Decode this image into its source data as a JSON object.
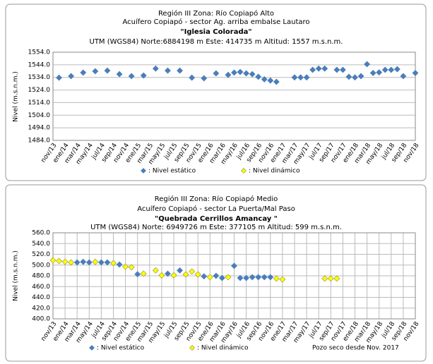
{
  "chart_data": [
    {
      "type": "scatter",
      "title": "Región III Zona: Río Copiapó Alto",
      "subtitle": "Acuífero Copiapó - sector Ag. arriba embalse Lautaro",
      "station": "\"Iglesia Colorada\"",
      "coordinates": "UTM (WGS84) Norte:6884198 m Este: 414735 m Altitud: 1557 m.s.n.m.",
      "y_label": "Nivel (m.s.n.m.)",
      "categories": [
        "nov/13",
        null,
        "ene/14",
        null,
        "mar/14",
        null,
        "may/14",
        null,
        "jul/14",
        null,
        "sep/14",
        null,
        "nov/14",
        null,
        "ene/15",
        null,
        "mar/15",
        null,
        "may/15",
        null,
        "jul/15",
        null,
        "sep/15",
        null,
        "nov/15",
        null,
        "ene/16",
        null,
        "mar/16",
        null,
        "may/16",
        null,
        "jul/16",
        null,
        "sep/16",
        null,
        "nov/16",
        null,
        "ene/17",
        null,
        "mar/17",
        null,
        "may/17",
        null,
        "jul/17",
        null,
        "sep/17",
        null,
        "nov/17",
        null,
        "ene/18",
        null,
        "mar/18",
        null,
        "may/18",
        null,
        "jul/18",
        null,
        "sep/18",
        null,
        "nov/18"
      ],
      "series": [
        {
          "name": ": Nivel estático",
          "color": "#4a7ebb",
          "values": [
            null,
            1533.8,
            null,
            1535,
            null,
            1537.8,
            null,
            1538.9,
            null,
            1539.4,
            null,
            1536.6,
            null,
            1535,
            null,
            1535.5,
            null,
            1541,
            null,
            1539.4,
            null,
            1539.4,
            null,
            1533.8,
            null,
            1533.3,
            null,
            1537.2,
            null,
            1536,
            1537.8,
            1538.3,
            1537.2,
            1536.6,
            1534.5,
            1532.5,
            1531.5,
            1530.5,
            null,
            null,
            1534,
            1534,
            1534,
            1540,
            1541,
            1541,
            null,
            1540,
            1540,
            1534.5,
            1534,
            1535,
            1544.5,
            1537.5,
            1538,
            1540,
            1540,
            1540.5,
            1535,
            null,
            1537.5
          ]
        },
        {
          "name": ": Nivel dinámico",
          "color": "#ffff00",
          "values": [
            null,
            null,
            null,
            null,
            null,
            null,
            null,
            null,
            null,
            null,
            null,
            null,
            null,
            null,
            null,
            null,
            null,
            null,
            null,
            null,
            null,
            null,
            null,
            null,
            null,
            null,
            null,
            null,
            null,
            null,
            null,
            null,
            null,
            null,
            null,
            null,
            null,
            null,
            null,
            null,
            null,
            null,
            null,
            null,
            null,
            null,
            null,
            null,
            null,
            null,
            null,
            null,
            null,
            null,
            null,
            null,
            null,
            null,
            null,
            null,
            null
          ]
        }
      ],
      "ylim": [
        1484,
        1554
      ],
      "yticks": [
        {
          "value": 1484,
          "label": "1484.0"
        },
        {
          "value": 1494,
          "label": "1494.0"
        },
        {
          "value": 1504,
          "label": "1504.0"
        },
        {
          "value": 1514,
          "label": "1514.0"
        },
        {
          "value": 1524,
          "label": "1524.0"
        },
        {
          "value": 1534,
          "label": "1534.0"
        },
        {
          "value": 1544,
          "label": "1544.0"
        },
        {
          "value": 1554,
          "label": "1554.0"
        }
      ],
      "grid": true,
      "xgrid": false
    },
    {
      "type": "scatter",
      "title": "Región III  Zona: Río Copiapó Medio",
      "subtitle": "Acuífero Copiapó - sector La Puerta/Mal  Paso",
      "station": "\"Quebrada Cerrillos Amancay \"",
      "coordinates": "UTM (WGS84) Norte: 6949726 m   Este: 377105 m Altitud: 599 m.s.n.m.",
      "y_label": "Nivel (m.s.n.m.)",
      "note": "Pozo seco desde Nov. 2017",
      "categories": [
        "nov/13",
        null,
        "ene/14",
        null,
        "mar/14",
        null,
        "may/14",
        null,
        "jul/14",
        null,
        "sep/14",
        null,
        "nov/14",
        null,
        "ene/15",
        null,
        "mar/15",
        null,
        "may/15",
        null,
        "jul/15",
        null,
        "sep/15",
        null,
        "nov/15",
        null,
        "ene/16",
        null,
        "mar/16",
        null,
        "may/16",
        null,
        "jul/16",
        null,
        "sep/16",
        null,
        "nov/16",
        null,
        "ene/17",
        null,
        "mar/17",
        null,
        "may/17",
        null,
        "jul/17",
        null,
        "sep/17",
        null,
        "nov/17",
        null,
        "ene/18",
        null,
        "mar/18",
        null,
        "may/18",
        null,
        "jul/18",
        null,
        "sep/18",
        null,
        "nov/18"
      ],
      "series": [
        {
          "name": ": Nivel estático",
          "color": "#4a7ebb",
          "values": [
            null,
            null,
            null,
            null,
            505,
            506,
            505,
            null,
            505,
            505,
            null,
            501,
            null,
            null,
            483,
            null,
            null,
            null,
            null,
            484,
            null,
            490,
            null,
            null,
            null,
            479,
            null,
            480,
            476,
            null,
            498.6,
            476,
            476,
            477.5,
            477.5,
            477.5,
            477.5,
            null,
            null,
            null,
            null,
            null,
            null,
            null,
            null,
            null,
            null,
            null,
            null,
            null,
            null,
            null,
            null,
            null,
            null,
            null,
            null,
            null,
            null,
            null,
            null
          ]
        },
        {
          "name": ": Nivel dinámico",
          "color": "#ffff00",
          "values": [
            508.8,
            507.5,
            506,
            505,
            null,
            null,
            null,
            506,
            null,
            null,
            503.6,
            null,
            497,
            496,
            null,
            484,
            null,
            490,
            481,
            null,
            481,
            null,
            482.6,
            488,
            482.6,
            null,
            477.5,
            null,
            null,
            477.5,
            null,
            null,
            null,
            null,
            null,
            null,
            null,
            475,
            473.4,
            null,
            null,
            null,
            null,
            null,
            null,
            475,
            475,
            475,
            null,
            null,
            null,
            null,
            null,
            null,
            null,
            null,
            null,
            null,
            null,
            null,
            null
          ]
        }
      ],
      "ylim": [
        400,
        560
      ],
      "yticks": [
        {
          "value": 400,
          "label": "400.0"
        },
        {
          "value": 420,
          "label": "420.0"
        },
        {
          "value": 440,
          "label": "440.0"
        },
        {
          "value": 460,
          "label": "460.0"
        },
        {
          "value": 480,
          "label": "480.0"
        },
        {
          "value": 500,
          "label": "500.0"
        },
        {
          "value": 520,
          "label": "520.0"
        },
        {
          "value": 540,
          "label": "540.0"
        },
        {
          "value": 560,
          "label": "560.0"
        }
      ],
      "grid": true,
      "xgrid": true
    }
  ]
}
